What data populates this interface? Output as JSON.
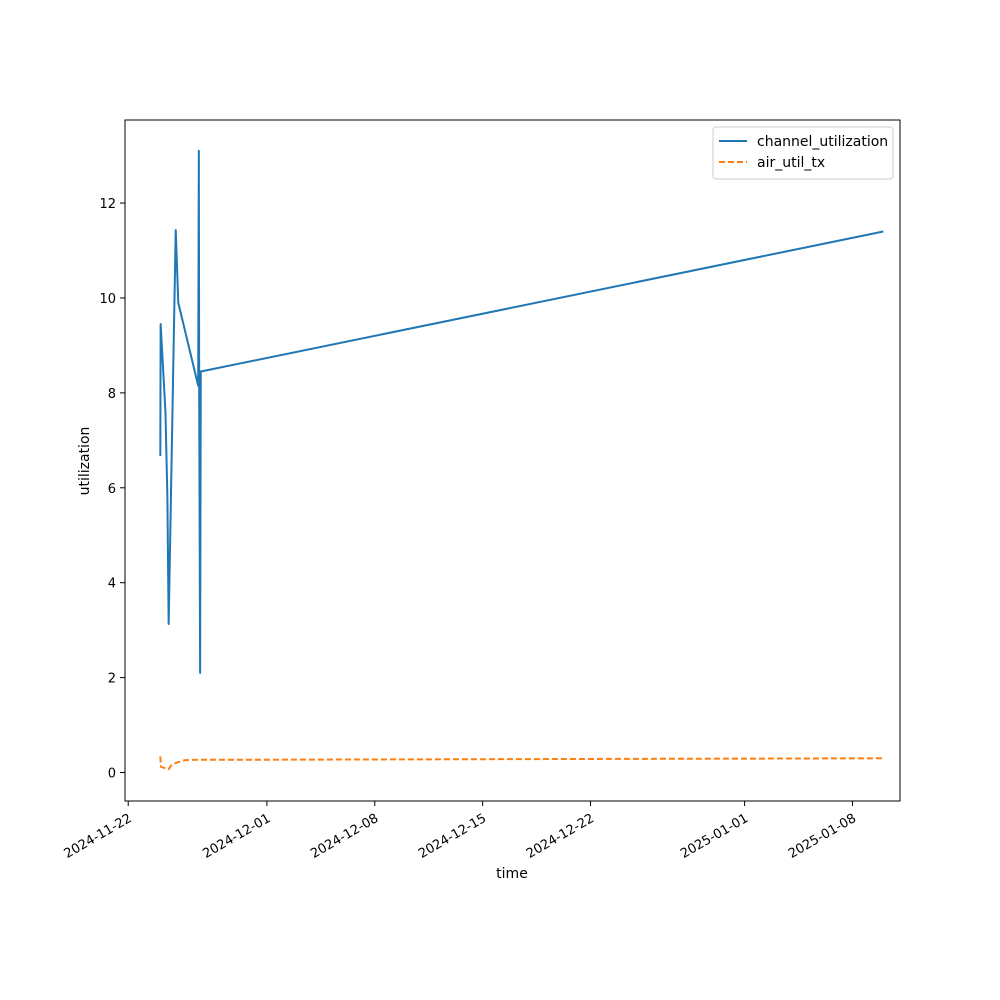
{
  "chart_data": {
    "type": "line",
    "title": "",
    "xlabel": "time",
    "ylabel": "utilization",
    "x_type": "date",
    "xlim": [
      "2024-11-21T19:00",
      "2025-01-11T02:00"
    ],
    "ylim": [
      -0.6,
      13.75
    ],
    "x_ticks": [
      "2024-11-22",
      "2024-12-01",
      "2024-12-08",
      "2024-12-15",
      "2024-12-22",
      "2025-01-01",
      "2025-01-08"
    ],
    "y_ticks": [
      0,
      2,
      4,
      6,
      8,
      10,
      12
    ],
    "y_tick_labels": [
      "0",
      "2",
      "4",
      "6",
      "8",
      "10",
      "12"
    ],
    "grid": false,
    "legend_position": "top-right",
    "series": [
      {
        "name": "channel_utilization",
        "color": "#1f77b4",
        "style": "solid",
        "points": [
          [
            "2024-11-24T02:00",
            6.67
          ],
          [
            "2024-11-24T02:30",
            9.45
          ],
          [
            "2024-11-24T10:00",
            7.6
          ],
          [
            "2024-11-24T13:00",
            5.8
          ],
          [
            "2024-11-24T15:00",
            3.13
          ],
          [
            "2024-11-25T02:00",
            11.43
          ],
          [
            "2024-11-25T06:00",
            9.9
          ],
          [
            "2024-11-26T13:00",
            8.15
          ],
          [
            "2024-11-26T14:00",
            13.1
          ],
          [
            "2024-11-26T14:30",
            8.2
          ],
          [
            "2024-11-26T16:00",
            2.1
          ],
          [
            "2024-11-26T17:00",
            8.45
          ],
          [
            "2025-01-10T00:00",
            11.4
          ]
        ]
      },
      {
        "name": "air_util_tx",
        "color": "#ff7f0e",
        "style": "dashed",
        "points": [
          [
            "2024-11-24T02:00",
            0.34
          ],
          [
            "2024-11-24T03:00",
            0.12
          ],
          [
            "2024-11-24T15:00",
            0.07
          ],
          [
            "2024-11-24T20:00",
            0.17
          ],
          [
            "2024-11-25T06:00",
            0.22
          ],
          [
            "2024-11-25T16:00",
            0.26
          ],
          [
            "2024-11-26T12:00",
            0.27
          ],
          [
            "2024-12-01T00:00",
            0.27
          ],
          [
            "2025-01-10T00:00",
            0.3
          ]
        ]
      }
    ]
  }
}
